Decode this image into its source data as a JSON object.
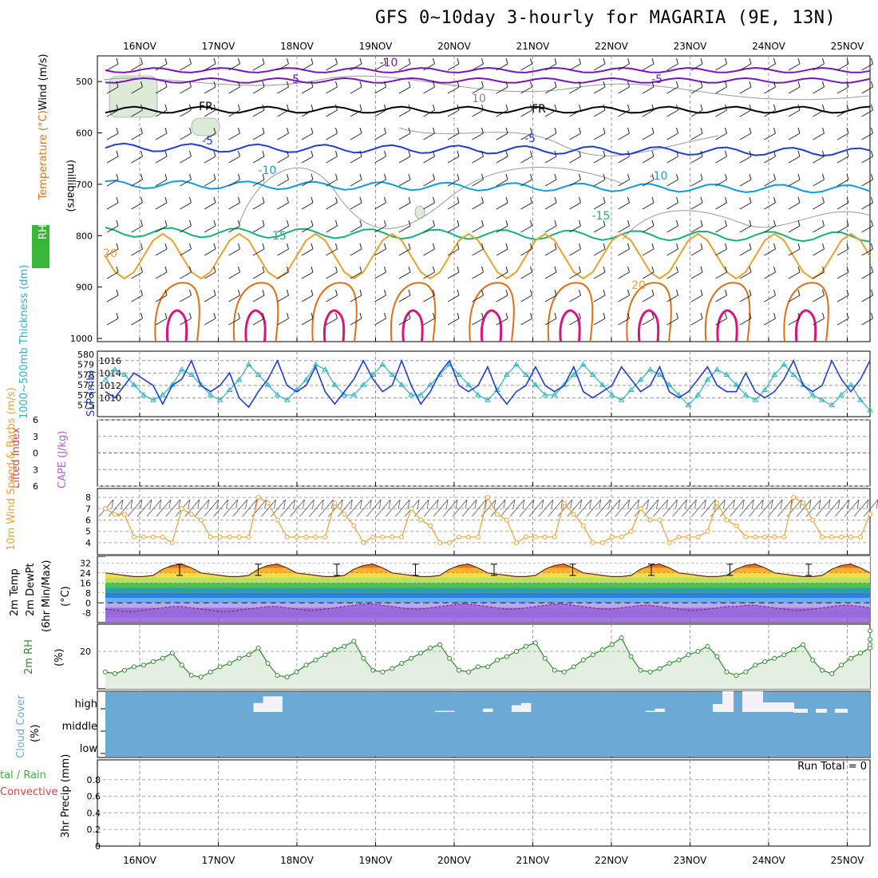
{
  "title": "GFS 0~10day 3-hourly for MAGARIA (9E, 13N)",
  "colors": {
    "purple": "#7a16b8",
    "black": "#000000",
    "blue": "#1f3fd0",
    "skyblue": "#129ae0",
    "green": "#17b07b",
    "orange": "#e8a22c",
    "darkorange": "#e06e12",
    "magenta": "#d8157a",
    "rh_fill": "#e3efe1",
    "cloud_bg": "#6aaad5",
    "cloud_fill": "#f4f1f9",
    "slp": "#1f3fd0",
    "thickness": "#2ab4c4",
    "wind10m": "#f0a030",
    "rh2m": "#2e8b2e"
  },
  "chart_data": [
    {
      "type": "line",
      "name": "upper-air",
      "x": [
        "16NOV",
        "17NOV",
        "18NOV",
        "19NOV",
        "20NOV",
        "21NOV",
        "22NOV",
        "23NOV",
        "24NOV",
        "25NOV"
      ],
      "ylabel_parts": [
        "RH (%)",
        "Temperature (°C)",
        "Wind (m/s)"
      ],
      "ylabel_units": "(millibars)",
      "y_ticks": [
        500,
        600,
        700,
        800,
        900,
        1000
      ],
      "ylim": [
        1000,
        450
      ],
      "contour_labels": [
        {
          "text": "-10",
          "color": "purple"
        },
        {
          "text": "-5",
          "color": "purple"
        },
        {
          "text": "-5",
          "color": "purple"
        },
        {
          "text": "FR",
          "color": "black"
        },
        {
          "text": "FR",
          "color": "black"
        },
        {
          "text": "-5",
          "color": "blue"
        },
        {
          "text": "-5",
          "color": "blue"
        },
        {
          "text": "-10",
          "color": "skyblue"
        },
        {
          "text": "-10",
          "color": "skyblue"
        },
        {
          "text": "15",
          "color": "green"
        },
        {
          "text": "-15",
          "color": "green"
        },
        {
          "text": "20",
          "color": "orange"
        },
        {
          "text": "20",
          "color": "orange"
        },
        {
          "text": "10",
          "color": "gray"
        }
      ]
    },
    {
      "type": "line",
      "name": "pressure",
      "ylabel_left": "1000~500mb Thickness (dm)",
      "ylabel_right": "SLP (mb)",
      "y_left_ticks": [
        575,
        576,
        577,
        578,
        579,
        580
      ],
      "y_right_ticks": [
        1010,
        1012,
        1014,
        1016
      ],
      "slp": [
        1011,
        1010,
        1012,
        1014,
        1013,
        1012,
        1009,
        1012,
        1013,
        1016,
        1012,
        1011,
        1012,
        1014,
        1010,
        1008.5,
        1011,
        1013,
        1016,
        1012,
        1011,
        1012,
        1015,
        1011,
        1009,
        1011,
        1013,
        1016,
        1013,
        1011,
        1012,
        1016,
        1012,
        1009,
        1011,
        1014,
        1016,
        1012,
        1011,
        1012,
        1015,
        1011,
        1009,
        1011,
        1012,
        1015,
        1012,
        1011,
        1012,
        1015,
        1011,
        1010,
        1011,
        1012,
        1015,
        1013,
        1011,
        1012,
        1015,
        1011,
        1010,
        1011,
        1013,
        1015,
        1012,
        1011,
        1011,
        1014,
        1011,
        1010,
        1011,
        1013,
        1016,
        1012,
        1011,
        1012,
        1016,
        1013,
        1011,
        1013,
        1016
      ],
      "thickness": [
        577.5,
        578.5,
        578,
        577,
        576,
        575.5,
        576,
        577,
        578.5,
        578,
        577,
        576,
        575.5,
        576.5,
        577.5,
        579,
        578,
        577,
        576,
        575.5,
        576.5,
        577.5,
        579,
        578.5,
        577,
        576,
        576,
        577,
        578,
        579,
        578,
        577,
        576,
        576,
        577,
        578,
        579,
        578,
        577,
        576,
        575.5,
        576.5,
        578,
        579,
        578,
        577,
        576,
        576,
        577,
        578,
        579,
        578,
        577,
        576,
        575.5,
        576.5,
        577.5,
        578.5,
        578,
        577,
        576,
        575,
        576,
        577.5,
        578.5,
        578,
        577,
        576,
        575.5,
        576.5,
        578,
        579,
        578,
        577,
        576,
        575.5,
        575,
        576,
        577,
        575.5,
        574.5
      ]
    },
    {
      "type": "line",
      "name": "instability",
      "ylabel_left": "Lifted Index",
      "ylabel_right": "CAPE (J/kg)",
      "y_ticks": [
        -6,
        -3,
        0,
        3,
        6
      ],
      "values": []
    },
    {
      "type": "line",
      "name": "wind10m",
      "ylabel": "10m Wind Speed & Barbs (m/s)",
      "y_ticks": [
        4,
        5,
        6,
        7,
        8
      ],
      "values": [
        7.0,
        6.5,
        6.5,
        4.5,
        4.5,
        4.5,
        4.5,
        4.0,
        7.0,
        6.5,
        6.0,
        4.5,
        4.5,
        4.5,
        4.5,
        4.5,
        8.0,
        7.5,
        6.0,
        4.5,
        4.5,
        4.5,
        4.5,
        4.5,
        7.5,
        6.5,
        5.5,
        4.0,
        4.5,
        4.5,
        4.5,
        4.5,
        7.0,
        6.0,
        5.5,
        4.0,
        4.0,
        4.5,
        4.5,
        4.5,
        8.0,
        6.5,
        6.0,
        4.0,
        4.5,
        4.5,
        4.5,
        4.5,
        7.5,
        6.5,
        5.5,
        4.0,
        4.0,
        4.5,
        4.5,
        5.0,
        7.0,
        6.0,
        6.0,
        4.0,
        4.5,
        4.5,
        4.5,
        5.0,
        7.5,
        6.0,
        5.5,
        4.5,
        4.5,
        4.5,
        4.5,
        4.5,
        8.0,
        7.5,
        6.0,
        4.5,
        4.5,
        4.5,
        4.5,
        4.5,
        6.5
      ]
    },
    {
      "type": "area",
      "name": "temp2m",
      "ylabel": "2m Temp 2m DewPt (6hr Min/Max) (°C)",
      "y_ticks": [
        -8,
        0,
        8,
        16,
        24,
        32
      ],
      "temp": [
        24,
        23,
        22,
        21,
        21,
        22,
        27,
        30,
        31,
        28,
        24,
        23,
        22,
        21,
        21,
        22,
        27,
        30,
        31,
        28,
        24,
        23,
        22,
        21,
        21,
        22,
        27,
        30,
        31,
        28,
        24,
        23,
        22,
        21,
        21,
        22,
        27,
        30,
        31,
        28,
        24,
        23,
        22,
        21,
        21,
        22,
        27,
        30,
        31,
        28,
        24,
        23,
        22,
        21,
        21,
        22,
        27,
        30,
        31,
        28,
        24,
        23,
        22,
        21,
        21,
        22,
        27,
        30,
        31,
        28,
        24,
        23,
        22,
        21,
        21,
        22,
        27,
        30,
        31,
        28,
        24
      ],
      "dewpt": [
        -5,
        -6,
        -7,
        -7,
        -6,
        -5,
        -4,
        -3,
        -3,
        -4,
        -5,
        -6,
        -7,
        -7,
        -6,
        -5,
        -4,
        -3,
        -3,
        -4,
        -5,
        -6,
        -6,
        -5,
        -4,
        -3,
        -2,
        -1,
        -1,
        -2,
        -3,
        -4,
        -5,
        -5,
        -4,
        -3,
        -2,
        -1,
        -1,
        -2,
        -3,
        -4,
        -5,
        -5,
        -4,
        -3,
        -2,
        -1,
        -1,
        -2,
        -3,
        -4,
        -5,
        -5,
        -4,
        -3,
        -2,
        -2,
        -3,
        -4,
        -5,
        -6,
        -6,
        -5,
        -4,
        -3,
        -3,
        -2,
        -2,
        -3,
        -4,
        -5,
        -6,
        -6,
        -5,
        -4,
        -3,
        -2,
        -2,
        -3,
        -4
      ]
    },
    {
      "type": "line",
      "name": "rh2m",
      "ylabel": "2m RH (%)",
      "y_ticks": [
        20
      ],
      "values": [
        8,
        7,
        9,
        11,
        12,
        14,
        16,
        19,
        12,
        6,
        5,
        8,
        11,
        13,
        16,
        18,
        22,
        13,
        6,
        5,
        8,
        12,
        15,
        18,
        21,
        23,
        26,
        16,
        9,
        8,
        10,
        13,
        16,
        19,
        22,
        24,
        16,
        9,
        8,
        11,
        11,
        15,
        17,
        20,
        23,
        25,
        16,
        9,
        8,
        11,
        15,
        18,
        21,
        24,
        28,
        17,
        9,
        8,
        10,
        13,
        15,
        18,
        20,
        23,
        17,
        8,
        6,
        8,
        12,
        14,
        16,
        18,
        21,
        24,
        15,
        9,
        7,
        12,
        16,
        19,
        22,
        24,
        27,
        32
      ]
    },
    {
      "type": "heatmap",
      "name": "cloud",
      "ylabel": "Cloud Cover (%)",
      "levels": [
        "high",
        "middle",
        "low"
      ],
      "high_cover": [
        0,
        0,
        0,
        0,
        0,
        0,
        0,
        0,
        0,
        0,
        0,
        0,
        0,
        0,
        0,
        0,
        40,
        70,
        70,
        0,
        0,
        0,
        0,
        0,
        0,
        0,
        0,
        0,
        0,
        0,
        0,
        0,
        0,
        0,
        0,
        5,
        5,
        0,
        0,
        0,
        15,
        0,
        0,
        30,
        40,
        0,
        0,
        0,
        0,
        0,
        0,
        0,
        0,
        0,
        0,
        0,
        0,
        5,
        15,
        0,
        0,
        0,
        0,
        0,
        0,
        5,
        0,
        0,
        0,
        0,
        0,
        0,
        0,
        0,
        0,
        0,
        0,
        0,
        0,
        0,
        0,
        0
      ]
    },
    {
      "type": "bar",
      "name": "precip",
      "ylabel": "3hr Precip (mm)",
      "ylabel_left_a": "Total / Rain",
      "ylabel_left_b": "Convective",
      "y_ticks": [
        0,
        0.2,
        0.4,
        0.6,
        0.8
      ],
      "ylim": [
        0,
        1
      ],
      "run_total": "Run Total = 0",
      "values": []
    }
  ]
}
